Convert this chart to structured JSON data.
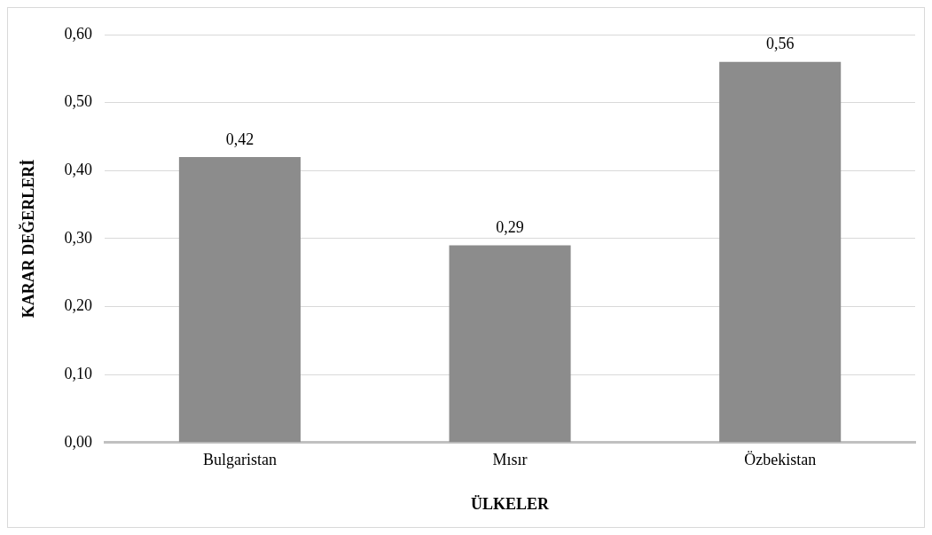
{
  "chart_data": {
    "type": "bar",
    "xlabel": "ÜLKELER",
    "ylabel": "KARAR DEĞERLERİ",
    "categories": [
      "Bulgaristan",
      "Mısır",
      "Özbekistan"
    ],
    "values": [
      0.42,
      0.29,
      0.56
    ],
    "color": "#8c8c8c",
    "value_labels": [
      "0,42",
      "0,29",
      "0,56"
    ],
    "ylim": [
      0,
      0.6
    ],
    "yticks": [
      {
        "value": 0,
        "label": "0,00"
      },
      {
        "value": 0.1,
        "label": "0,10"
      },
      {
        "value": 0.2,
        "label": "0,20"
      },
      {
        "value": 0.3,
        "label": "0,30"
      },
      {
        "value": 0.4,
        "label": "0,40"
      },
      {
        "value": 0.5,
        "label": "0,50"
      },
      {
        "value": 0.6,
        "label": "0,60"
      }
    ],
    "grid": "y",
    "legend": false
  }
}
